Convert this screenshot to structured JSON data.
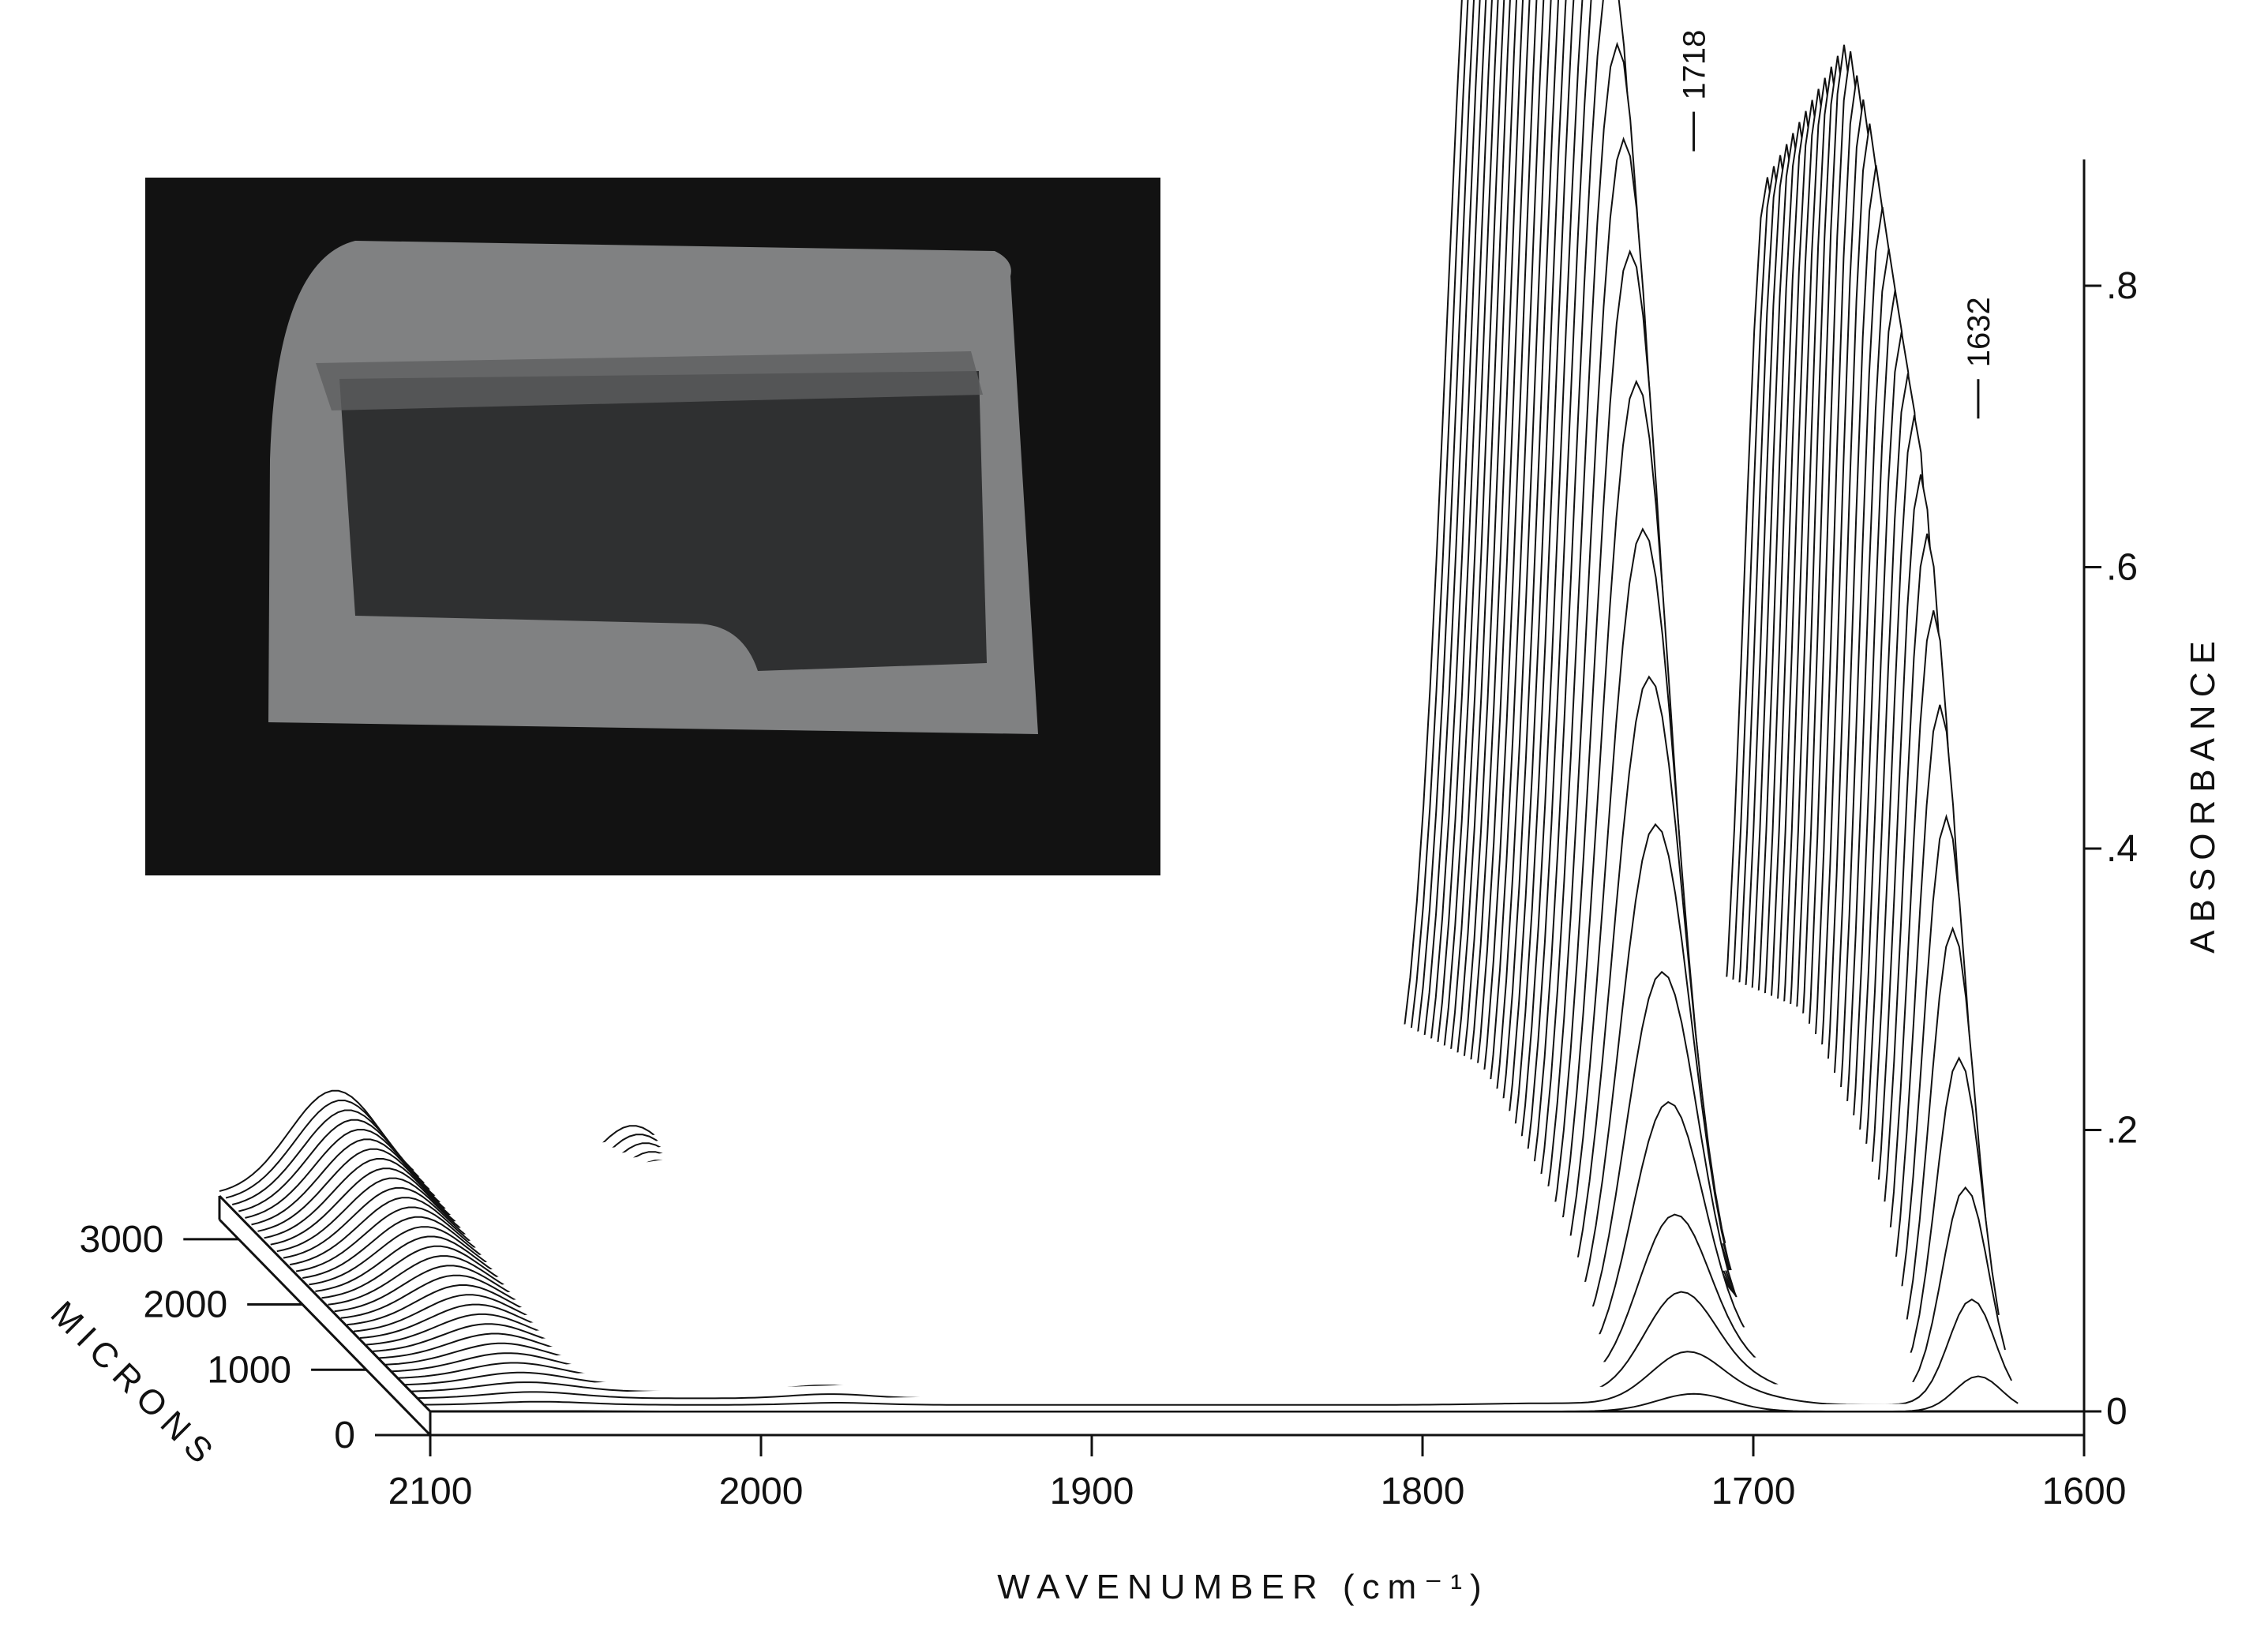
{
  "chart_data": {
    "type": "line",
    "title": "",
    "xlabel": "WAVENUMBER (cm⁻¹)",
    "ylabel": "ABSORBANCE",
    "depth_label": "MICRONS",
    "x_ticks": [
      "2100",
      "2000",
      "1900",
      "1800",
      "1700",
      "1600"
    ],
    "x_tick_values": [
      2100,
      2000,
      1900,
      1800,
      1700,
      1600
    ],
    "y_ticks": [
      "0",
      ".2",
      ".4",
      ".6",
      ".8"
    ],
    "y_tick_values": [
      0,
      0.2,
      0.4,
      0.6,
      0.8
    ],
    "depth_ticks": [
      "0",
      "1000",
      "2000",
      "3000"
    ],
    "depth_tick_values": [
      0,
      1000,
      2000,
      3000
    ],
    "xlim": [
      2100,
      1600
    ],
    "ylim": [
      0,
      0.9
    ],
    "depth_range": [
      0,
      3300
    ],
    "peak_annotations": [
      {
        "label": "1718",
        "x": 1718,
        "y": 0.89
      },
      {
        "label": "1632",
        "x": 1632,
        "y": 0.7
      }
    ],
    "series_count": 34,
    "series_depth_step": 100,
    "series_peak_1718": [
      0.01,
      0.03,
      0.06,
      0.1,
      0.16,
      0.23,
      0.31,
      0.39,
      0.47,
      0.55,
      0.62,
      0.68,
      0.73,
      0.77,
      0.8,
      0.82,
      0.84,
      0.85,
      0.86,
      0.87,
      0.88,
      0.885,
      0.89,
      0.89,
      0.885,
      0.88,
      0.87,
      0.86,
      0.85,
      0.84,
      0.83,
      0.82,
      0.81,
      0.8
    ],
    "series_peak_1632": [
      0.02,
      0.06,
      0.12,
      0.19,
      0.26,
      0.32,
      0.38,
      0.43,
      0.47,
      0.5,
      0.53,
      0.55,
      0.57,
      0.59,
      0.61,
      0.63,
      0.65,
      0.67,
      0.68,
      0.69,
      0.7,
      0.7,
      0.69,
      0.68,
      0.67,
      0.66,
      0.65,
      0.64,
      0.63,
      0.62,
      0.61,
      0.6,
      0.59,
      0.58
    ]
  },
  "inset": {
    "description_icon": "sample-photo",
    "colors": {
      "background": "#111111",
      "band": "#8f9090",
      "core": "#3a3b3c"
    }
  }
}
